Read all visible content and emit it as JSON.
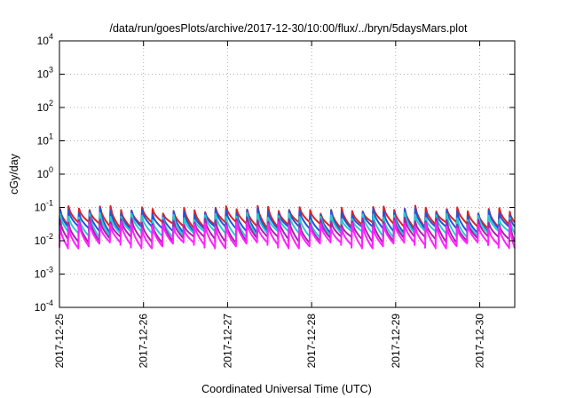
{
  "chart_data": {
    "type": "line",
    "title": "/data/run/goesPlots/archive/2017-12-30/10:00/flux/../bryn/5daysMars.plot",
    "xlabel": "Coordinated Universal Time (UTC)",
    "ylabel": "cGy/day",
    "yscale": "log",
    "ylim": [
      0.0001,
      10000
    ],
    "y_ticks": [
      {
        "base": "10",
        "exp": "-4"
      },
      {
        "base": "10",
        "exp": "-3"
      },
      {
        "base": "10",
        "exp": "-2"
      },
      {
        "base": "10",
        "exp": "-1"
      },
      {
        "base": "10",
        "exp": "0"
      },
      {
        "base": "10",
        "exp": "1"
      },
      {
        "base": "10",
        "exp": "2"
      },
      {
        "base": "10",
        "exp": "3"
      },
      {
        "base": "10",
        "exp": "4"
      }
    ],
    "xlim": [
      "2017-12-25 00:00",
      "2017-12-30 10:00"
    ],
    "x_ticks": [
      "2017-12-25",
      "2017-12-26",
      "2017-12-27",
      "2017-12-28",
      "2017-12-29",
      "2017-12-30"
    ],
    "grid": true,
    "legend": "none",
    "cycle_hours": 3,
    "series": [
      {
        "color": "#dd2222",
        "peak": 0.09,
        "trough": 0.03
      },
      {
        "color": "#2255dd",
        "peak": 0.075,
        "trough": 0.022
      },
      {
        "color": "#22cccc",
        "peak": 0.055,
        "trough": 0.016
      },
      {
        "color": "#aa22aa",
        "peak": 0.04,
        "trough": 0.011
      },
      {
        "color": "#ff22ff",
        "peak": 0.03,
        "trough": 0.0075
      }
    ]
  }
}
